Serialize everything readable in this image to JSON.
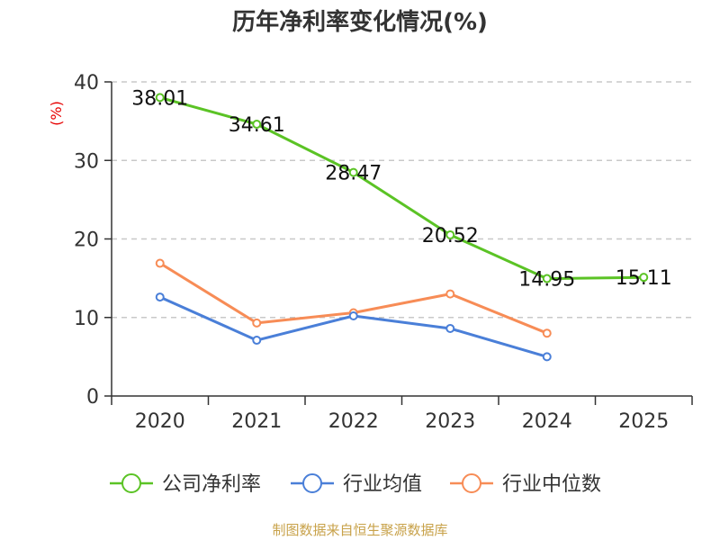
{
  "chart_data": {
    "type": "line",
    "title": "历年净利率变化情况(%)",
    "ylabel": "(%)",
    "xlabel": "",
    "categories": [
      "2020",
      "2021",
      "2022",
      "2023",
      "2024",
      "2025"
    ],
    "ylim": [
      0,
      40
    ],
    "yticks": [
      0,
      10,
      20,
      30,
      40
    ],
    "grid": true,
    "legend_position": "bottom",
    "series": [
      {
        "name": "公司净利率",
        "color": "#5bc325",
        "values": [
          38.01,
          34.61,
          28.47,
          20.52,
          14.95,
          15.11
        ],
        "labels": [
          "38.01",
          "34.61",
          "28.47",
          "20.52",
          "14.95",
          "15.11"
        ]
      },
      {
        "name": "行业均值",
        "color": "#4a7fd8",
        "values": [
          12.6,
          7.1,
          10.2,
          8.6,
          5.0,
          null
        ]
      },
      {
        "name": "行业中位数",
        "color": "#f78c56",
        "values": [
          16.9,
          9.3,
          10.6,
          13.0,
          8.0,
          null
        ]
      }
    ],
    "source": "制图数据来自恒生聚源数据库"
  }
}
